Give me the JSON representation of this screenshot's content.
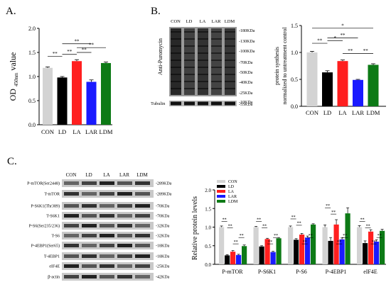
{
  "panel_labels": {
    "a": "A.",
    "b": "B.",
    "c": "C."
  },
  "colors": {
    "CON": "#d3d3d3",
    "LD": "#000000",
    "LA": "#ff1f1f",
    "LAR": "#1a1aff",
    "LDM": "#0d7a16"
  },
  "blot_b": {
    "lanes": [
      "CON",
      "LD",
      "LA",
      "LAR",
      "LDM"
    ],
    "antibody": "Anti-Puromycin",
    "loading": "Tubulin",
    "markers": [
      "180KDa",
      "130KDa",
      "100KDa",
      "70KDa",
      "50KDa",
      "40KDa",
      "25KDa",
      "10KDa"
    ],
    "loading_marker": "55KDa"
  },
  "blot_c": {
    "lanes": [
      "CON",
      "LD",
      "LA",
      "LAR",
      "LDM"
    ],
    "rows": [
      {
        "label": "P-mTOR(Ser2448)",
        "kda": "289KDa"
      },
      {
        "label": "T-mTOR",
        "kda": "289KDa"
      },
      {
        "label": "P-S6K1(Thr389)",
        "kda": "70KDa"
      },
      {
        "label": "T-S6K1",
        "kda": "70KDa"
      },
      {
        "label": "P-S6(Ser235/236)",
        "kda": "32KDa"
      },
      {
        "label": "T-S6",
        "kda": "32KDa"
      },
      {
        "label": "P-4EBP1(Ser65)",
        "kda": "18KDa"
      },
      {
        "label": "T-4EBP1",
        "kda": "18KDa"
      },
      {
        "label": "eIF4E",
        "kda": "25KDa"
      },
      {
        "label": "β-actin",
        "kda": "42KDa"
      }
    ]
  },
  "chart_data": [
    {
      "id": "A",
      "type": "bar",
      "categories": [
        "CON",
        "LD",
        "LA",
        "LAR",
        "LDM"
      ],
      "values": [
        1.18,
        0.98,
        1.32,
        0.89,
        1.28
      ],
      "errors": [
        0.02,
        0.02,
        0.03,
        0.04,
        0.02
      ],
      "ylabel": "OD 450nm value",
      "ylim": [
        0,
        2.0
      ],
      "yticks": [
        "0.0",
        "0.5",
        "1.0",
        "1.5",
        "2.0"
      ],
      "significance": [
        {
          "from": 0,
          "to": 1,
          "label": "**"
        },
        {
          "from": 1,
          "to": 2,
          "label": "**"
        },
        {
          "from": 2,
          "to": 3,
          "label": "**"
        },
        {
          "from": 1,
          "to": 3,
          "label": "**"
        },
        {
          "from": 2,
          "to": 4,
          "label": "**"
        }
      ]
    },
    {
      "id": "B",
      "type": "bar",
      "categories": [
        "CON",
        "LD",
        "LA",
        "LAR",
        "LDM"
      ],
      "values": [
        1.0,
        0.63,
        0.84,
        0.49,
        0.77
      ],
      "errors": [
        0.02,
        0.03,
        0.02,
        0.01,
        0.02
      ],
      "ylabel": "protein synthesis normalized to untreatment control",
      "ylabel_lines": [
        "protein synthesis",
        "normalized to untreatment control"
      ],
      "ylim": [
        0,
        1.5
      ],
      "yticks": [
        "0.0",
        "0.5",
        "1.0",
        "1.5"
      ],
      "significance": [
        {
          "from": 0,
          "to": 1,
          "label": "**"
        },
        {
          "from": 1,
          "to": 2,
          "label": "*"
        },
        {
          "from": 1,
          "to": 3,
          "label": "**"
        },
        {
          "from": 2,
          "to": 3,
          "label": "**"
        },
        {
          "from": 3,
          "to": 4,
          "label": "**"
        },
        {
          "from": 0,
          "to": 4,
          "label": "*"
        }
      ]
    },
    {
      "id": "C",
      "type": "bar",
      "categories": [
        "P-mTOR",
        "P-S6K1",
        "P-S6",
        "P-4EBP1",
        "eIF4E"
      ],
      "ylabel": "Relative protein levels",
      "ylim": [
        0,
        2.0
      ],
      "yticks": [
        "0.0",
        "0.5",
        "1.0",
        "1.5",
        "2.0"
      ],
      "legend": [
        "CON",
        "LD",
        "LA",
        "LAR",
        "LDM"
      ],
      "legend_position": "top-left",
      "series": [
        {
          "name": "CON",
          "values": [
            1.0,
            1.0,
            1.0,
            1.0,
            1.0
          ]
        },
        {
          "name": "LD",
          "values": [
            0.24,
            0.48,
            0.66,
            0.63,
            0.57
          ]
        },
        {
          "name": "LA",
          "values": [
            0.34,
            0.68,
            0.8,
            1.07,
            0.88
          ]
        },
        {
          "name": "LAR",
          "values": [
            0.25,
            0.33,
            0.72,
            0.67,
            0.61
          ]
        },
        {
          "name": "LDM",
          "values": [
            0.49,
            0.7,
            1.07,
            1.37,
            0.9
          ]
        }
      ],
      "errors": [
        [
          0.03,
          0.02,
          0.03,
          0.06,
          0.04
        ],
        [
          0.02,
          0.02,
          0.03,
          0.09,
          0.06
        ],
        [
          0.03,
          0.02,
          0.03,
          0.13,
          0.05
        ],
        [
          0.02,
          0.02,
          0.04,
          0.04,
          0.05
        ],
        [
          0.03,
          0.02,
          0.02,
          0.15,
          0.04
        ]
      ],
      "significance_label": "**"
    }
  ]
}
